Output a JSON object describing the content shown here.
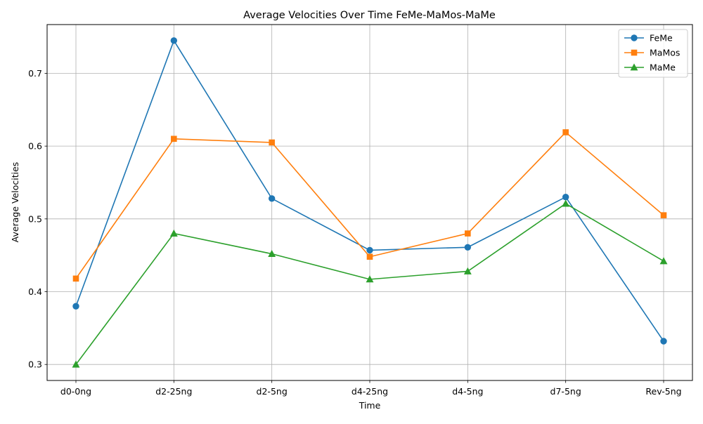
{
  "chart_data": {
    "type": "line",
    "title": "Average Velocities Over Time FeMe-MaMos-MaMe",
    "xlabel": "Time",
    "ylabel": "Average Velocities",
    "categories": [
      "d0-0ng",
      "d2-25ng",
      "d2-5ng",
      "d4-25ng",
      "d4-5ng",
      "d7-5ng",
      "Rev-5ng"
    ],
    "yticks": [
      "0.3",
      "0.4",
      "0.5",
      "0.6",
      "0.7"
    ],
    "ylim": [
      0.278,
      0.767
    ],
    "grid": true,
    "legend_position": "top-right",
    "series": [
      {
        "name": "FeMe",
        "marker": "circle",
        "color": "#1f77b4",
        "values": [
          0.38,
          0.745,
          0.528,
          0.457,
          0.461,
          0.53,
          0.332
        ]
      },
      {
        "name": "MaMos",
        "marker": "square",
        "color": "#ff7f0e",
        "values": [
          0.418,
          0.61,
          0.605,
          0.448,
          0.48,
          0.619,
          0.505
        ]
      },
      {
        "name": "MaMe",
        "marker": "triangle",
        "color": "#2ca02c",
        "values": [
          0.3,
          0.48,
          0.452,
          0.417,
          0.428,
          0.521,
          0.442
        ]
      }
    ]
  }
}
